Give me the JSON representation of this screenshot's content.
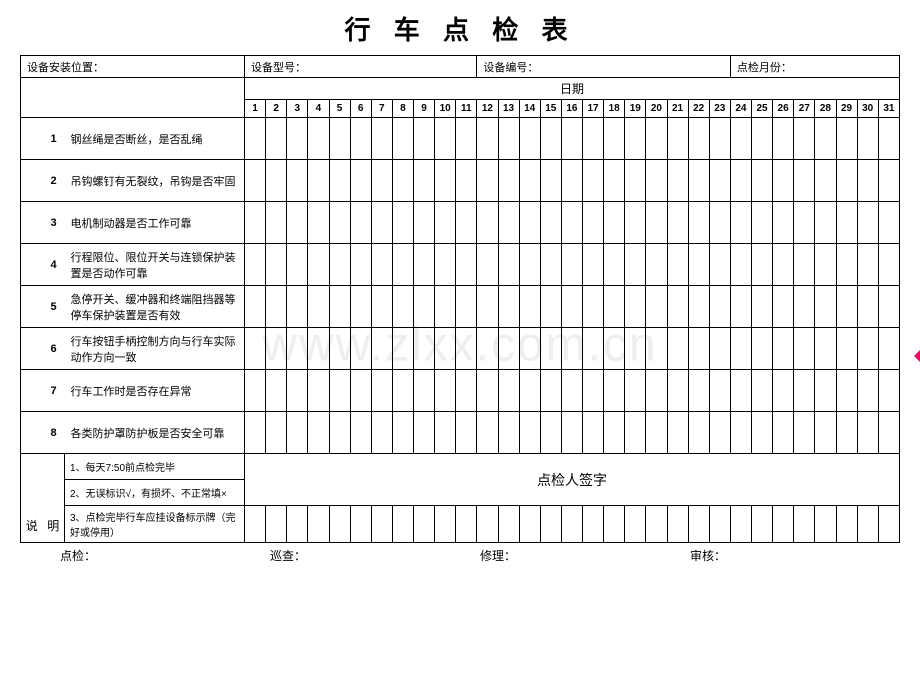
{
  "watermark": "www.zlxx.com.cn",
  "title": "行 车 点 检 表",
  "header": {
    "position_label": "设备安装位置：",
    "model_label": "设备型号：",
    "number_label": "设备编号：",
    "month_label": "点检月份："
  },
  "date_label": "日期",
  "days": [
    "1",
    "2",
    "3",
    "4",
    "5",
    "6",
    "7",
    "8",
    "9",
    "10",
    "11",
    "12",
    "13",
    "14",
    "15",
    "16",
    "17",
    "18",
    "19",
    "20",
    "21",
    "22",
    "23",
    "24",
    "25",
    "26",
    "27",
    "28",
    "29",
    "30",
    "31"
  ],
  "items": [
    {
      "num": "1",
      "desc": "钢丝绳是否断丝，是否乱绳"
    },
    {
      "num": "2",
      "desc": "吊钩螺钉有无裂纹，吊钩是否牢固"
    },
    {
      "num": "3",
      "desc": "电机制动器是否工作可靠"
    },
    {
      "num": "4",
      "desc": "行程限位、限位开关与连锁保护装置是否动作可靠"
    },
    {
      "num": "5",
      "desc": "急停开关、缓冲器和终端阻挡器等停车保护装置是否有效"
    },
    {
      "num": "6",
      "desc": "行车按钮手柄控制方向与行车实际动作方向一致"
    },
    {
      "num": "7",
      "desc": "行车工作时是否存在异常"
    },
    {
      "num": "8",
      "desc": "各类防护罩防护板是否安全可靠"
    }
  ],
  "shuoming_label_1": "说",
  "shuoming_label_2": "明",
  "notes": [
    "1、每天7:50前点检完毕",
    "2、无误标识√，有损坏、不正常填×",
    "3、点检完毕行车应挂设备标示牌（完好或停用）"
  ],
  "sign_label": "点检人签字",
  "footer": {
    "check": "点检：",
    "inspect": "巡查：",
    "repair": "修理：",
    "audit": "审核："
  }
}
